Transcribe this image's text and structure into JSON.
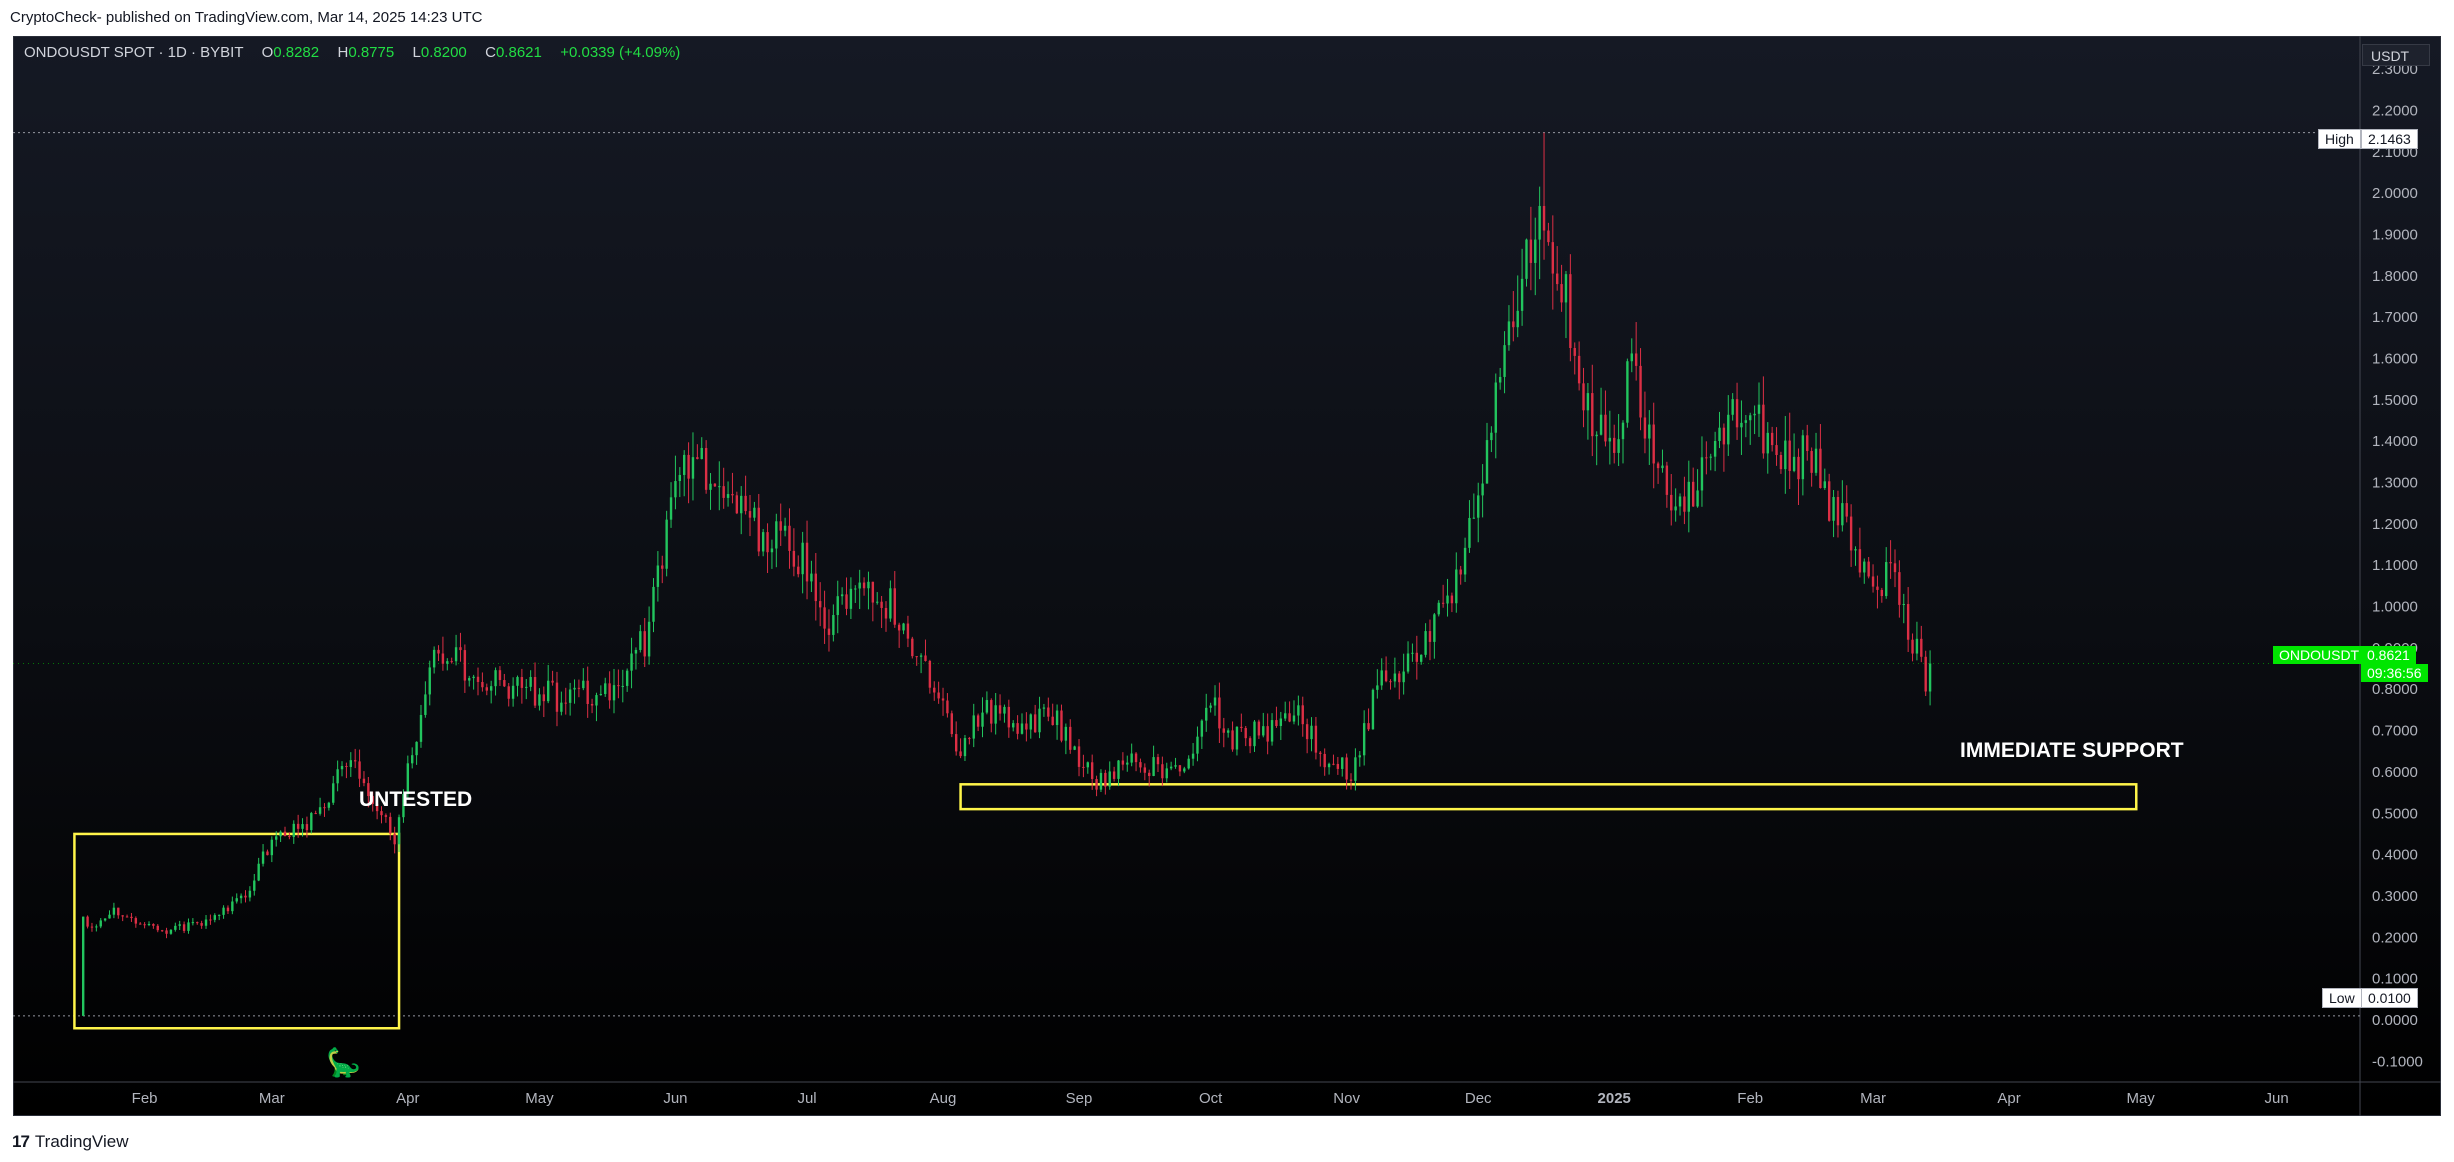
{
  "header": {
    "publisher": "CryptoCheck- published on TradingView.com, Mar 14, 2025 14:23 UTC"
  },
  "legend": {
    "symbol": "ONDOUSDT SPOT · 1D · BYBIT",
    "open_label": "O",
    "open": "0.8282",
    "high_label": "H",
    "high": "0.8775",
    "low_label": "L",
    "low": "0.8200",
    "close_label": "C",
    "close": "0.8621",
    "change": "+0.0339 (+4.09%)"
  },
  "price_axis": {
    "currency": "USDT",
    "high_label": "High",
    "high_value": "2.1463",
    "low_label": "Low",
    "low_value": "0.0100",
    "current_symbol": "ONDOUSDT",
    "current_price": "0.8621",
    "countdown": "09:36:56"
  },
  "annotations": {
    "untested": "UNTESTED",
    "support": "IMMEDIATE SUPPORT"
  },
  "footer": {
    "brand": "TradingView",
    "logo": "17"
  },
  "icons": {
    "watermark": "dinosaur-icon",
    "brand_logo": "tradingview-logo-icon"
  },
  "colors": {
    "up": "#22c55e",
    "down": "#dc2f45",
    "zone": "#fff54a",
    "price_tag": "#00e600"
  },
  "chart_data": {
    "type": "candlestick",
    "symbol": "ONDOUSDT",
    "timeframe": "1D",
    "ylim": [
      -0.15,
      2.38
    ],
    "yticks": [
      -0.1,
      0.0,
      0.1,
      0.2,
      0.3,
      0.4,
      0.5,
      0.6,
      0.7,
      0.8,
      0.9,
      1.0,
      1.1,
      1.2,
      1.3,
      1.4,
      1.5,
      1.6,
      1.7,
      1.8,
      1.9,
      2.0,
      2.1,
      2.2,
      2.3
    ],
    "xticks": [
      {
        "label": "Feb",
        "date": "2024-02-01"
      },
      {
        "label": "Mar",
        "date": "2024-03-01"
      },
      {
        "label": "Apr",
        "date": "2024-04-01"
      },
      {
        "label": "May",
        "date": "2024-05-01"
      },
      {
        "label": "Jun",
        "date": "2024-06-01"
      },
      {
        "label": "Jul",
        "date": "2024-07-01"
      },
      {
        "label": "Aug",
        "date": "2024-08-01"
      },
      {
        "label": "Sep",
        "date": "2024-09-01"
      },
      {
        "label": "Oct",
        "date": "2024-10-01"
      },
      {
        "label": "Nov",
        "date": "2024-11-01"
      },
      {
        "label": "Dec",
        "date": "2024-12-01"
      },
      {
        "label": "2025",
        "date": "2025-01-01"
      },
      {
        "label": "Feb",
        "date": "2025-02-01"
      },
      {
        "label": "Mar",
        "date": "2025-03-01"
      },
      {
        "label": "Apr",
        "date": "2025-04-01"
      },
      {
        "label": "May",
        "date": "2025-05-01"
      },
      {
        "label": "Jun",
        "date": "2025-06-01"
      }
    ],
    "x_range": [
      "2024-01-02",
      "2025-06-20"
    ],
    "price_path": [
      [
        "2024-01-18",
        0.01
      ],
      [
        "2024-01-19",
        0.22
      ],
      [
        "2024-01-25",
        0.27
      ],
      [
        "2024-02-05",
        0.21
      ],
      [
        "2024-02-15",
        0.24
      ],
      [
        "2024-02-24",
        0.3
      ],
      [
        "2024-03-01",
        0.44
      ],
      [
        "2024-03-08",
        0.47
      ],
      [
        "2024-03-13",
        0.52
      ],
      [
        "2024-03-17",
        0.63
      ],
      [
        "2024-03-22",
        0.58
      ],
      [
        "2024-03-29",
        0.44
      ],
      [
        "2024-04-03",
        0.7
      ],
      [
        "2024-04-08",
        0.9
      ],
      [
        "2024-04-13",
        0.86
      ],
      [
        "2024-04-20",
        0.82
      ],
      [
        "2024-05-05",
        0.78
      ],
      [
        "2024-05-18",
        0.8
      ],
      [
        "2024-05-25",
        0.92
      ],
      [
        "2024-06-01",
        1.28
      ],
      [
        "2024-06-05",
        1.4
      ],
      [
        "2024-06-10",
        1.28
      ],
      [
        "2024-06-20",
        1.18
      ],
      [
        "2024-06-30",
        1.12
      ],
      [
        "2024-07-06",
        0.95
      ],
      [
        "2024-07-13",
        1.08
      ],
      [
        "2024-07-20",
        1.0
      ],
      [
        "2024-07-28",
        0.86
      ],
      [
        "2024-08-05",
        0.64
      ],
      [
        "2024-08-10",
        0.75
      ],
      [
        "2024-08-20",
        0.7
      ],
      [
        "2024-08-25",
        0.75
      ],
      [
        "2024-09-05",
        0.57
      ],
      [
        "2024-09-12",
        0.62
      ],
      [
        "2024-09-25",
        0.6
      ],
      [
        "2024-10-01",
        0.78
      ],
      [
        "2024-10-05",
        0.68
      ],
      [
        "2024-10-15",
        0.7
      ],
      [
        "2024-10-20",
        0.76
      ],
      [
        "2024-10-27",
        0.64
      ],
      [
        "2024-11-02",
        0.6
      ],
      [
        "2024-11-08",
        0.8
      ],
      [
        "2024-11-20",
        0.93
      ],
      [
        "2024-11-28",
        1.1
      ],
      [
        "2024-12-05",
        1.55
      ],
      [
        "2024-12-10",
        1.78
      ],
      [
        "2024-12-15",
        1.98
      ],
      [
        "2024-12-20",
        1.8
      ],
      [
        "2024-12-25",
        1.5
      ],
      [
        "2025-01-01",
        1.4
      ],
      [
        "2025-01-05",
        1.58
      ],
      [
        "2025-01-10",
        1.35
      ],
      [
        "2025-01-15",
        1.25
      ],
      [
        "2025-01-22",
        1.33
      ],
      [
        "2025-01-30",
        1.48
      ],
      [
        "2025-02-05",
        1.4
      ],
      [
        "2025-02-15",
        1.35
      ],
      [
        "2025-02-22",
        1.2
      ],
      [
        "2025-03-01",
        1.02
      ],
      [
        "2025-03-05",
        1.12
      ],
      [
        "2025-03-09",
        0.95
      ],
      [
        "2025-03-13",
        0.82
      ],
      [
        "2025-03-14",
        0.8621
      ]
    ],
    "high": {
      "date": "2024-12-16",
      "value": 2.1463
    },
    "low": {
      "date": "2024-01-18",
      "value": 0.01
    },
    "last_price": 0.8621,
    "zones": [
      {
        "label": "UNTESTED",
        "x1": "2024-01-16",
        "x2": "2024-03-30",
        "y1": -0.02,
        "y2": 0.45
      },
      {
        "label": "IMMEDIATE SUPPORT",
        "x1": "2024-08-05",
        "x2": "2025-04-30",
        "y1": 0.51,
        "y2": 0.57
      }
    ]
  }
}
